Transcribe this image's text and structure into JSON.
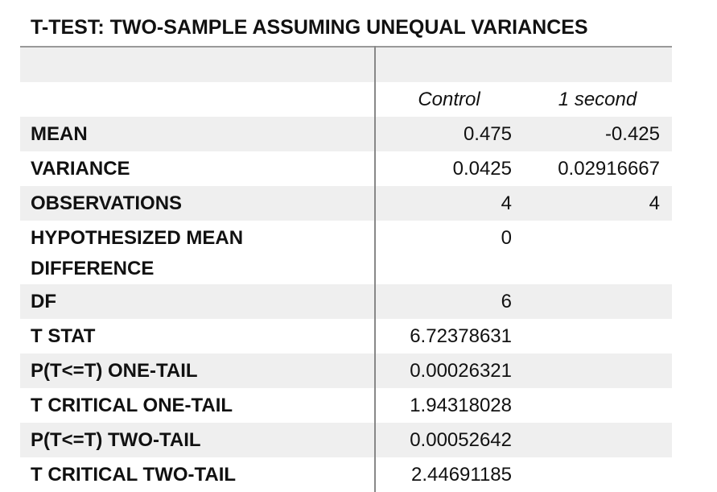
{
  "title": "T-TEST: TWO-SAMPLE ASSUMING UNEQUAL VARIANCES",
  "table": {
    "columns": [
      "Control",
      "1 second"
    ],
    "rows": [
      {
        "label": "MEAN",
        "values": [
          "0.475",
          "-0.425"
        ]
      },
      {
        "label": "VARIANCE",
        "values": [
          "0.0425",
          "0.02916667"
        ]
      },
      {
        "label": "OBSERVATIONS",
        "values": [
          "4",
          "4"
        ]
      },
      {
        "label": "HYPOTHESIZED MEAN DIFFERENCE",
        "values": [
          "0"
        ]
      },
      {
        "label": "DF",
        "values": [
          "6"
        ]
      },
      {
        "label": "T STAT",
        "values": [
          "6.72378631"
        ]
      },
      {
        "label": "P(T<=T) ONE-TAIL",
        "values": [
          "0.00026321"
        ]
      },
      {
        "label": "T CRITICAL ONE-TAIL",
        "values": [
          "1.94318028"
        ]
      },
      {
        "label": "P(T<=T) TWO-TAIL",
        "values": [
          "0.00052642"
        ]
      },
      {
        "label": "T CRITICAL TWO-TAIL",
        "values": [
          "2.44691185"
        ]
      }
    ]
  }
}
